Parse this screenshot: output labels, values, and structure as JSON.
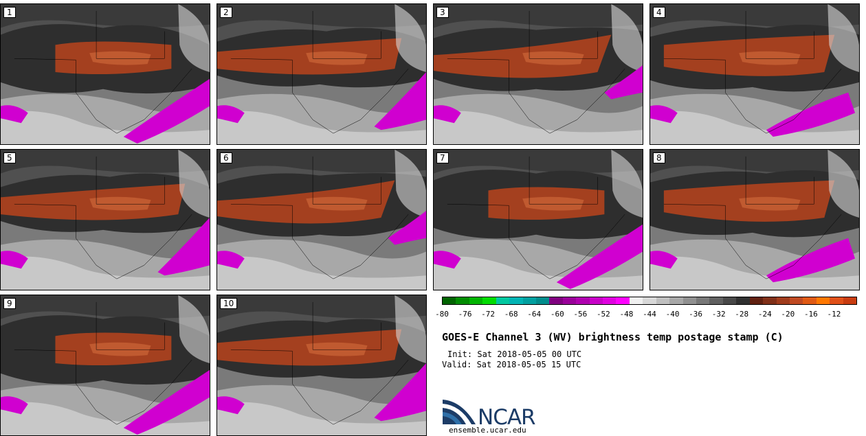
{
  "panels": [
    {
      "label": "1",
      "variant": 0
    },
    {
      "label": "2",
      "variant": 1
    },
    {
      "label": "3",
      "variant": 2
    },
    {
      "label": "4",
      "variant": 3
    },
    {
      "label": "5",
      "variant": 1
    },
    {
      "label": "6",
      "variant": 2
    },
    {
      "label": "7",
      "variant": 0
    },
    {
      "label": "8",
      "variant": 3
    },
    {
      "label": "9",
      "variant": 0
    },
    {
      "label": "10",
      "variant": 1
    }
  ],
  "colorbar": {
    "colors": [
      "#006400",
      "#008c00",
      "#00b400",
      "#00dc00",
      "#00c8a0",
      "#00b4b4",
      "#00a0a0",
      "#008c8c",
      "#800080",
      "#9a009a",
      "#b000b0",
      "#c800c8",
      "#e000e0",
      "#ff00ff",
      "#f0f0f0",
      "#d8d8d8",
      "#c0c0c0",
      "#a8a8a8",
      "#909090",
      "#787878",
      "#606060",
      "#484848",
      "#303030",
      "#602010",
      "#803018",
      "#a03c1c",
      "#c04a22",
      "#e05a14",
      "#ff7800",
      "#e05018",
      "#c83c10"
    ],
    "tick_labels": [
      "-80",
      "-76",
      "-72",
      "-68",
      "-64",
      "-60",
      "-56",
      "-52",
      "-48",
      "-44",
      "-40",
      "-36",
      "-32",
      "-28",
      "-24",
      "-20",
      "-16",
      "-12"
    ]
  },
  "title": "GOES-E Channel 3 (WV) brightness temp postage stamp (C)",
  "init": "Init: Sat 2018-05-05 00 UTC",
  "valid": "Valid: Sat 2018-05-05 15 UTC",
  "logo": {
    "text": "NCAR",
    "site": "ensemble.ucar.edu",
    "accent": "#1c3c67",
    "swoosh": "#2e6fa8"
  }
}
